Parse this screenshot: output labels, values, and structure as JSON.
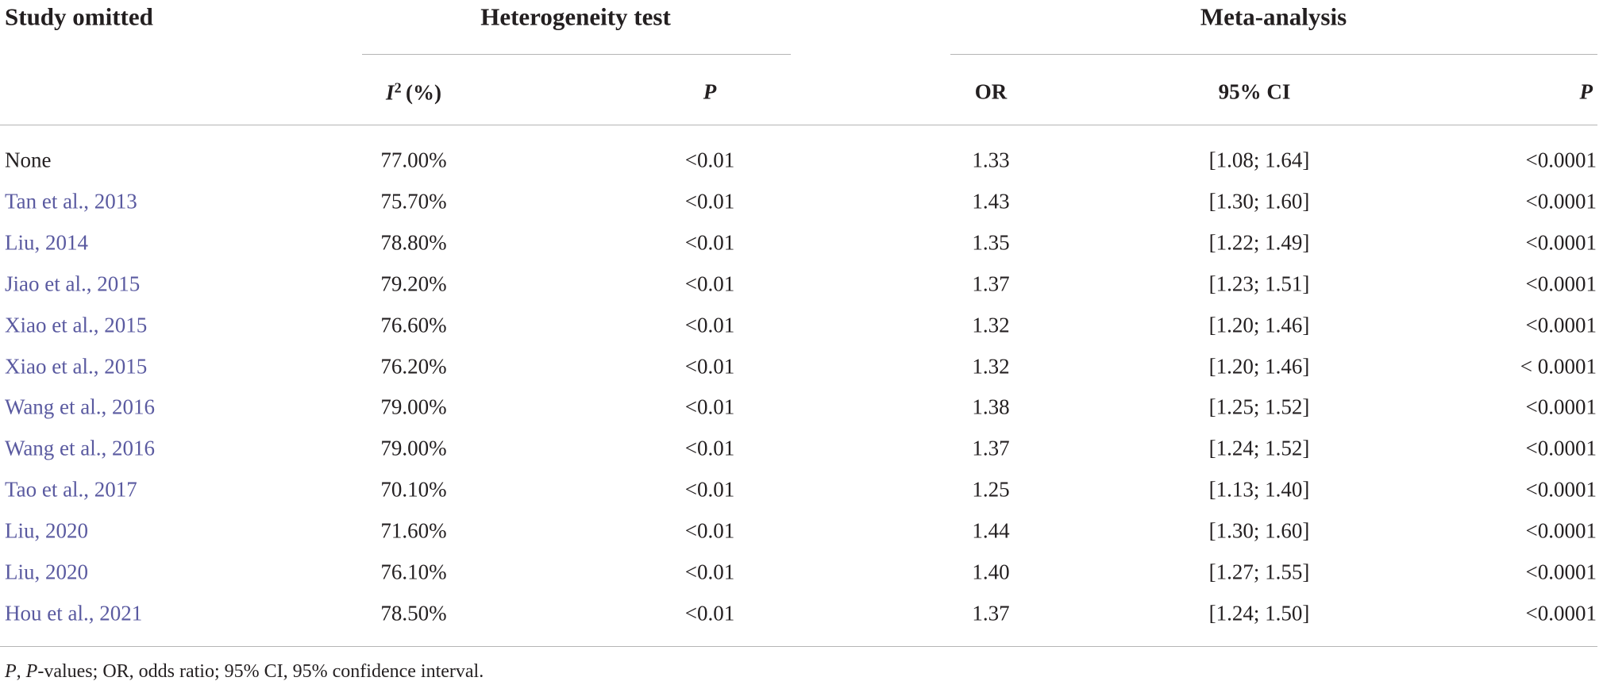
{
  "header": {
    "study": "Study omitted",
    "heterogeneity": "Heterogeneity test",
    "meta": "Meta-analysis"
  },
  "subheader": {
    "i2": {
      "symbol": "I",
      "superscript": "2",
      "unit": "(%)"
    },
    "p_het": "P",
    "or": "OR",
    "ci": "95% CI",
    "p_meta": "P"
  },
  "table": {
    "rows": [
      [
        "None",
        "77.00%",
        "<0.01",
        "1.33",
        "[1.08; 1.64]",
        "<0.0001"
      ],
      [
        "Tan et al., 2013",
        "75.70%",
        "<0.01",
        "1.43",
        "[1.30; 1.60]",
        "<0.0001"
      ],
      [
        "Liu, 2014",
        "78.80%",
        "<0.01",
        "1.35",
        "[1.22; 1.49]",
        "<0.0001"
      ],
      [
        "Jiao et al., 2015",
        "79.20%",
        "<0.01",
        "1.37",
        "[1.23; 1.51]",
        "<0.0001"
      ],
      [
        "Xiao et al., 2015",
        "76.60%",
        "<0.01",
        "1.32",
        "[1.20; 1.46]",
        "<0.0001"
      ],
      [
        "Xiao et al., 2015",
        "76.20%",
        "<0.01",
        "1.32",
        "[1.20; 1.46]",
        "< 0.0001"
      ],
      [
        "Wang et al., 2016",
        "79.00%",
        "<0.01",
        "1.38",
        "[1.25; 1.52]",
        "<0.0001"
      ],
      [
        "Wang et al., 2016",
        "79.00%",
        "<0.01",
        "1.37",
        "[1.24; 1.52]",
        "<0.0001"
      ],
      [
        "Tao et al., 2017",
        "70.10%",
        "<0.01",
        "1.25",
        "[1.13; 1.40]",
        "<0.0001"
      ],
      [
        "Liu, 2020",
        "71.60%",
        "<0.01",
        "1.44",
        "[1.30; 1.60]",
        "<0.0001"
      ],
      [
        "Liu, 2020",
        "76.10%",
        "<0.01",
        "1.40",
        "[1.27; 1.55]",
        "<0.0001"
      ],
      [
        "Hou et al., 2021",
        "78.50%",
        "<0.01",
        "1.37",
        "[1.24; 1.50]",
        "<0.0001"
      ]
    ]
  },
  "footnote": [
    "P",
    ", ",
    "P",
    "-values; OR, odds ratio; 95% CI, 95% confidence interval."
  ]
}
